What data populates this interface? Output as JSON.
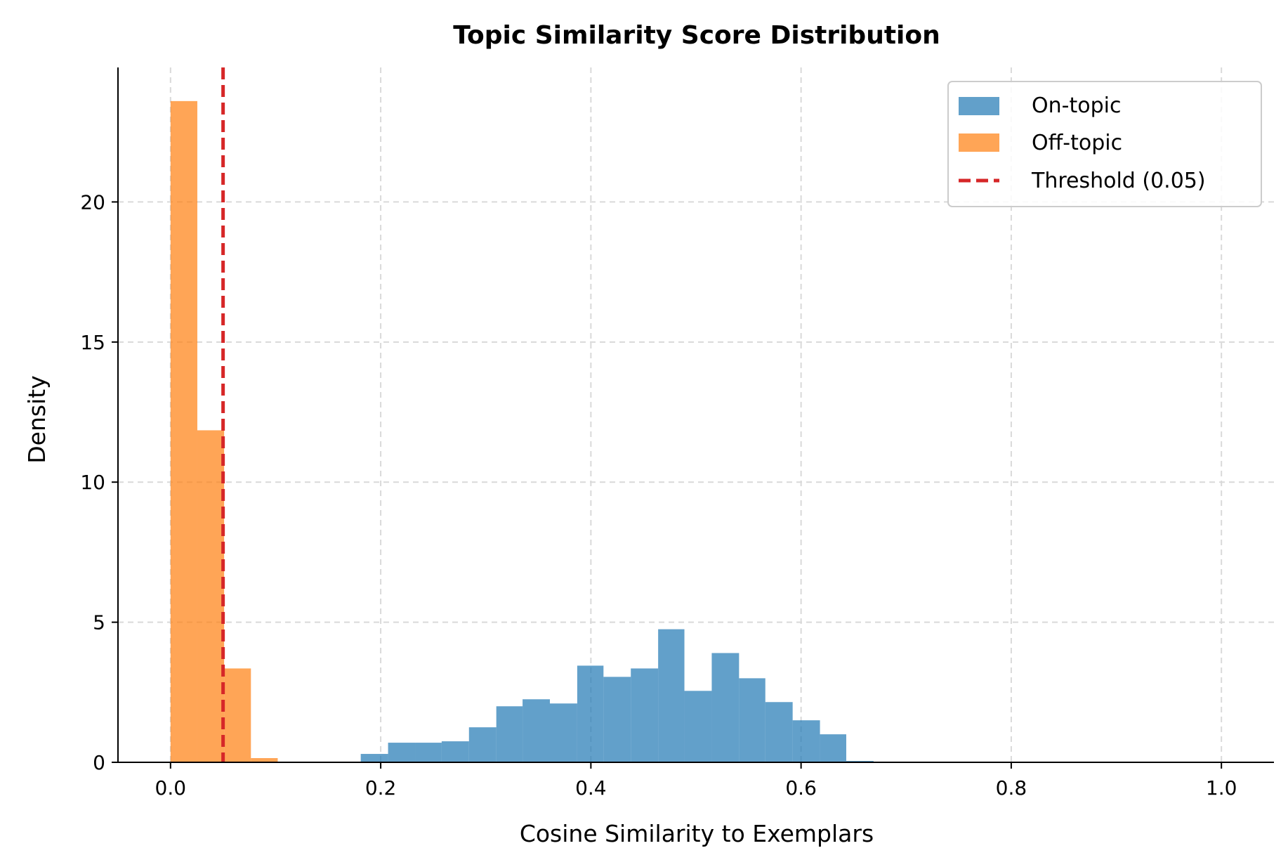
{
  "chart_data": {
    "type": "bar",
    "subtype": "histogram",
    "title": "Topic Similarity Score Distribution",
    "xlabel": "Cosine Similarity to Exemplars",
    "ylabel": "Density",
    "xlim": [
      -0.05,
      1.05
    ],
    "ylim": [
      0,
      24.8
    ],
    "x_ticks": [
      0.0,
      0.2,
      0.4,
      0.6,
      0.8,
      1.0
    ],
    "x_tick_labels": [
      "0.0",
      "0.2",
      "0.4",
      "0.6",
      "0.8",
      "1.0"
    ],
    "y_ticks": [
      0,
      5,
      10,
      15,
      20
    ],
    "y_tick_labels": [
      "0",
      "5",
      "10",
      "15",
      "20"
    ],
    "grid": true,
    "legend_position": "top-right",
    "series": [
      {
        "name": "On-topic",
        "color": "#1f77b4",
        "opacity": 0.7,
        "bins": [
          {
            "x0": 0.181,
            "x1": 0.207,
            "value": 0.3
          },
          {
            "x0": 0.207,
            "x1": 0.233,
            "value": 0.7
          },
          {
            "x0": 0.233,
            "x1": 0.258,
            "value": 0.7
          },
          {
            "x0": 0.258,
            "x1": 0.284,
            "value": 0.75
          },
          {
            "x0": 0.284,
            "x1": 0.31,
            "value": 1.25
          },
          {
            "x0": 0.31,
            "x1": 0.335,
            "value": 2.0
          },
          {
            "x0": 0.335,
            "x1": 0.361,
            "value": 2.25
          },
          {
            "x0": 0.361,
            "x1": 0.387,
            "value": 2.1
          },
          {
            "x0": 0.387,
            "x1": 0.412,
            "value": 3.45
          },
          {
            "x0": 0.412,
            "x1": 0.438,
            "value": 3.05
          },
          {
            "x0": 0.438,
            "x1": 0.464,
            "value": 3.35
          },
          {
            "x0": 0.464,
            "x1": 0.489,
            "value": 4.75
          },
          {
            "x0": 0.489,
            "x1": 0.515,
            "value": 2.55
          },
          {
            "x0": 0.515,
            "x1": 0.541,
            "value": 3.9
          },
          {
            "x0": 0.541,
            "x1": 0.566,
            "value": 3.0
          },
          {
            "x0": 0.566,
            "x1": 0.592,
            "value": 2.15
          },
          {
            "x0": 0.592,
            "x1": 0.618,
            "value": 1.5
          },
          {
            "x0": 0.618,
            "x1": 0.643,
            "value": 1.0
          },
          {
            "x0": 0.643,
            "x1": 0.669,
            "value": 0.05
          }
        ]
      },
      {
        "name": "Off-topic",
        "color": "#ff7f0e",
        "opacity": 0.7,
        "bins": [
          {
            "x0": 0.0,
            "x1": 0.0255,
            "value": 23.6
          },
          {
            "x0": 0.0255,
            "x1": 0.051,
            "value": 11.85
          },
          {
            "x0": 0.051,
            "x1": 0.0765,
            "value": 3.35
          },
          {
            "x0": 0.0765,
            "x1": 0.102,
            "value": 0.15
          }
        ]
      }
    ],
    "reference_lines": [
      {
        "name": "Threshold (0.05)",
        "x": 0.05,
        "color": "#d62728",
        "style": "dashed"
      }
    ]
  }
}
